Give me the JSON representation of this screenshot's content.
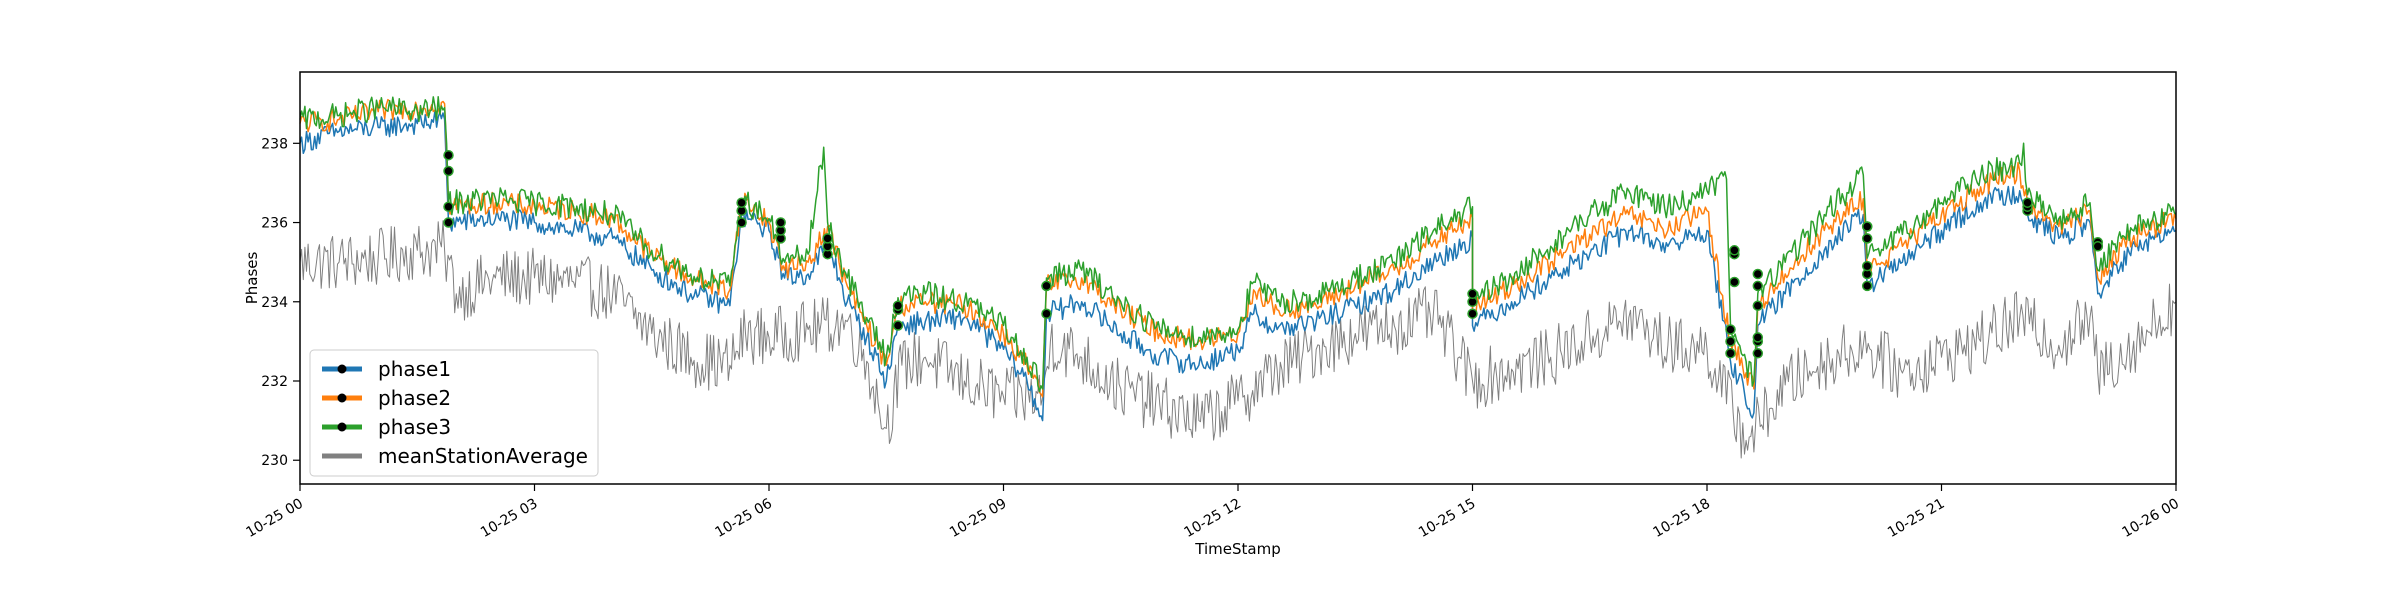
{
  "chart_data": {
    "type": "line",
    "xlabel": "TimeStamp",
    "ylabel": "Phases",
    "x_range": [
      "2023-10-25 00:00",
      "2023-10-26 00:00"
    ],
    "xtick_labels": [
      "10-25 00",
      "10-25 03",
      "10-25 06",
      "10-25 09",
      "10-25 12",
      "10-25 15",
      "10-25 18",
      "10-25 21",
      "10-26 00"
    ],
    "xtick_hours": [
      0,
      3,
      6,
      9,
      12,
      15,
      18,
      21,
      24
    ],
    "ylim": [
      229.4,
      239.8
    ],
    "yticks": [
      230,
      232,
      234,
      236,
      238
    ],
    "grid": false,
    "legend_position": "lower-left",
    "series": [
      {
        "name": "phase1",
        "color": "#1f77b4",
        "points": [
          [
            0.0,
            238.0
          ],
          [
            0.5,
            238.3
          ],
          [
            1.0,
            238.4
          ],
          [
            1.5,
            238.5
          ],
          [
            1.85,
            238.6
          ],
          [
            1.9,
            236.0
          ],
          [
            2.5,
            236.1
          ],
          [
            3.0,
            236.0
          ],
          [
            3.5,
            235.8
          ],
          [
            4.0,
            235.6
          ],
          [
            4.5,
            234.8
          ],
          [
            5.0,
            234.2
          ],
          [
            5.5,
            233.9
          ],
          [
            5.65,
            236.2
          ],
          [
            6.0,
            235.8
          ],
          [
            6.2,
            234.6
          ],
          [
            6.5,
            234.7
          ],
          [
            6.75,
            235.5
          ],
          [
            7.0,
            234.0
          ],
          [
            7.25,
            233.1
          ],
          [
            7.5,
            232.0
          ],
          [
            7.65,
            233.4
          ],
          [
            8.0,
            233.5
          ],
          [
            8.5,
            233.6
          ],
          [
            9.0,
            232.8
          ],
          [
            9.3,
            232.0
          ],
          [
            9.5,
            231.0
          ],
          [
            9.55,
            233.7
          ],
          [
            10.0,
            234.0
          ],
          [
            10.5,
            233.2
          ],
          [
            11.0,
            232.6
          ],
          [
            11.5,
            232.4
          ],
          [
            12.0,
            232.8
          ],
          [
            12.2,
            233.7
          ],
          [
            12.5,
            233.3
          ],
          [
            13.0,
            233.5
          ],
          [
            13.5,
            233.9
          ],
          [
            14.0,
            234.3
          ],
          [
            14.5,
            235.0
          ],
          [
            15.0,
            235.6
          ],
          [
            15.0,
            233.4
          ],
          [
            15.5,
            234.0
          ],
          [
            16.0,
            234.6
          ],
          [
            16.5,
            235.2
          ],
          [
            17.0,
            235.8
          ],
          [
            17.5,
            235.4
          ],
          [
            18.0,
            235.8
          ],
          [
            18.3,
            232.5
          ],
          [
            18.6,
            231.2
          ],
          [
            18.65,
            233.4
          ],
          [
            19.0,
            234.2
          ],
          [
            19.5,
            235.3
          ],
          [
            20.0,
            236.2
          ],
          [
            20.05,
            234.4
          ],
          [
            20.5,
            235.0
          ],
          [
            21.0,
            235.8
          ],
          [
            21.5,
            236.5
          ],
          [
            22.0,
            236.8
          ],
          [
            22.1,
            236.2
          ],
          [
            22.5,
            235.6
          ],
          [
            22.9,
            236.0
          ],
          [
            23.0,
            234.2
          ],
          [
            23.3,
            235.0
          ],
          [
            23.6,
            235.5
          ],
          [
            24.0,
            235.8
          ]
        ]
      },
      {
        "name": "phase2",
        "color": "#ff7f0e",
        "points": [
          [
            0.0,
            238.5
          ],
          [
            0.5,
            238.6
          ],
          [
            1.0,
            238.8
          ],
          [
            1.5,
            238.9
          ],
          [
            1.85,
            239.0
          ],
          [
            1.9,
            236.4
          ],
          [
            2.5,
            236.5
          ],
          [
            3.0,
            236.4
          ],
          [
            3.5,
            236.3
          ],
          [
            4.0,
            236.1
          ],
          [
            4.5,
            235.2
          ],
          [
            5.0,
            234.6
          ],
          [
            5.5,
            234.3
          ],
          [
            5.65,
            236.6
          ],
          [
            6.0,
            236.0
          ],
          [
            6.2,
            234.8
          ],
          [
            6.5,
            235.0
          ],
          [
            6.75,
            235.9
          ],
          [
            7.0,
            234.4
          ],
          [
            7.25,
            233.4
          ],
          [
            7.5,
            232.4
          ],
          [
            7.65,
            233.9
          ],
          [
            8.0,
            234.0
          ],
          [
            8.5,
            233.9
          ],
          [
            9.0,
            233.2
          ],
          [
            9.3,
            232.4
          ],
          [
            9.5,
            231.6
          ],
          [
            9.55,
            234.4
          ],
          [
            10.0,
            234.6
          ],
          [
            10.5,
            233.8
          ],
          [
            11.0,
            233.2
          ],
          [
            11.5,
            233.0
          ],
          [
            12.0,
            233.2
          ],
          [
            12.2,
            234.3
          ],
          [
            12.5,
            233.8
          ],
          [
            13.0,
            233.9
          ],
          [
            13.5,
            234.4
          ],
          [
            14.0,
            234.8
          ],
          [
            14.5,
            235.5
          ],
          [
            15.0,
            236.1
          ],
          [
            15.0,
            233.8
          ],
          [
            15.5,
            234.4
          ],
          [
            16.0,
            235.0
          ],
          [
            16.5,
            235.7
          ],
          [
            17.0,
            236.2
          ],
          [
            17.5,
            235.8
          ],
          [
            18.0,
            236.3
          ],
          [
            18.3,
            233.0
          ],
          [
            18.6,
            231.8
          ],
          [
            18.65,
            233.9
          ],
          [
            19.0,
            234.7
          ],
          [
            19.5,
            235.8
          ],
          [
            20.0,
            236.6
          ],
          [
            20.05,
            234.8
          ],
          [
            20.5,
            235.4
          ],
          [
            21.0,
            236.2
          ],
          [
            21.5,
            236.9
          ],
          [
            22.0,
            237.3
          ],
          [
            22.1,
            236.5
          ],
          [
            22.5,
            235.9
          ],
          [
            22.9,
            236.3
          ],
          [
            23.0,
            234.6
          ],
          [
            23.3,
            235.4
          ],
          [
            23.6,
            235.8
          ],
          [
            24.0,
            236.1
          ]
        ]
      },
      {
        "name": "phase3",
        "color": "#2ca02c",
        "points": [
          [
            0.0,
            238.6
          ],
          [
            0.5,
            238.7
          ],
          [
            1.0,
            238.9
          ],
          [
            1.5,
            238.8
          ],
          [
            1.85,
            238.9
          ],
          [
            1.9,
            236.5
          ],
          [
            2.5,
            236.6
          ],
          [
            3.0,
            236.5
          ],
          [
            3.5,
            236.4
          ],
          [
            4.0,
            236.2
          ],
          [
            4.5,
            235.3
          ],
          [
            5.0,
            234.7
          ],
          [
            5.5,
            234.4
          ],
          [
            5.65,
            236.6
          ],
          [
            6.0,
            236.1
          ],
          [
            6.2,
            235.0
          ],
          [
            6.5,
            235.2
          ],
          [
            6.7,
            237.9
          ],
          [
            6.75,
            236.0
          ],
          [
            7.0,
            234.6
          ],
          [
            7.25,
            233.6
          ],
          [
            7.5,
            232.6
          ],
          [
            7.65,
            234.1
          ],
          [
            8.0,
            234.2
          ],
          [
            8.5,
            234.0
          ],
          [
            9.0,
            233.4
          ],
          [
            9.3,
            232.6
          ],
          [
            9.5,
            231.8
          ],
          [
            9.55,
            234.6
          ],
          [
            10.0,
            234.8
          ],
          [
            10.5,
            234.0
          ],
          [
            11.0,
            233.3
          ],
          [
            11.5,
            233.1
          ],
          [
            12.0,
            233.3
          ],
          [
            12.2,
            234.5
          ],
          [
            12.5,
            234.0
          ],
          [
            13.0,
            234.1
          ],
          [
            13.5,
            234.6
          ],
          [
            14.0,
            235.0
          ],
          [
            14.5,
            235.8
          ],
          [
            15.0,
            236.4
          ],
          [
            15.0,
            234.0
          ],
          [
            15.5,
            234.6
          ],
          [
            16.0,
            235.4
          ],
          [
            16.5,
            236.2
          ],
          [
            17.0,
            236.8
          ],
          [
            17.5,
            236.4
          ],
          [
            18.0,
            236.8
          ],
          [
            18.25,
            237.1
          ],
          [
            18.3,
            233.4
          ],
          [
            18.6,
            232.0
          ],
          [
            18.65,
            234.2
          ],
          [
            19.0,
            235.0
          ],
          [
            19.5,
            236.2
          ],
          [
            20.0,
            237.2
          ],
          [
            20.05,
            235.1
          ],
          [
            20.5,
            235.7
          ],
          [
            21.0,
            236.5
          ],
          [
            21.5,
            237.2
          ],
          [
            22.0,
            237.5
          ],
          [
            22.05,
            238.0
          ],
          [
            22.1,
            236.7
          ],
          [
            22.5,
            236.1
          ],
          [
            22.9,
            236.5
          ],
          [
            23.0,
            234.8
          ],
          [
            23.3,
            235.6
          ],
          [
            23.6,
            236.0
          ],
          [
            24.0,
            236.2
          ]
        ]
      },
      {
        "name": "meanStationAverage",
        "color": "#808080",
        "points": [
          [
            0.0,
            235.0
          ],
          [
            0.5,
            235.0
          ],
          [
            1.0,
            235.1
          ],
          [
            1.5,
            235.3
          ],
          [
            1.85,
            235.3
          ],
          [
            2.0,
            234.2
          ],
          [
            2.5,
            234.6
          ],
          [
            3.0,
            234.6
          ],
          [
            3.5,
            234.5
          ],
          [
            4.0,
            234.2
          ],
          [
            4.5,
            233.2
          ],
          [
            5.0,
            232.6
          ],
          [
            5.5,
            232.4
          ],
          [
            5.7,
            233.2
          ],
          [
            6.0,
            233.1
          ],
          [
            6.5,
            233.3
          ],
          [
            7.0,
            233.5
          ],
          [
            7.25,
            232.5
          ],
          [
            7.5,
            230.8
          ],
          [
            7.7,
            232.4
          ],
          [
            8.0,
            232.6
          ],
          [
            8.5,
            232.0
          ],
          [
            9.0,
            231.6
          ],
          [
            9.5,
            231.6
          ],
          [
            9.6,
            233.0
          ],
          [
            10.0,
            232.6
          ],
          [
            10.5,
            231.8
          ],
          [
            11.0,
            231.4
          ],
          [
            11.5,
            231.0
          ],
          [
            12.0,
            231.5
          ],
          [
            12.5,
            232.3
          ],
          [
            13.0,
            232.8
          ],
          [
            13.5,
            233.2
          ],
          [
            14.0,
            233.4
          ],
          [
            14.5,
            233.7
          ],
          [
            15.0,
            232.0
          ],
          [
            15.5,
            232.3
          ],
          [
            16.0,
            232.6
          ],
          [
            16.5,
            233.1
          ],
          [
            17.0,
            233.6
          ],
          [
            17.5,
            232.9
          ],
          [
            18.0,
            232.8
          ],
          [
            18.5,
            230.5
          ],
          [
            18.8,
            231.3
          ],
          [
            19.0,
            231.9
          ],
          [
            19.5,
            232.5
          ],
          [
            20.0,
            232.9
          ],
          [
            20.5,
            232.2
          ],
          [
            21.0,
            232.6
          ],
          [
            21.5,
            233.0
          ],
          [
            22.0,
            233.6
          ],
          [
            22.5,
            232.9
          ],
          [
            22.9,
            233.6
          ],
          [
            23.0,
            232.2
          ],
          [
            23.5,
            233.0
          ],
          [
            24.0,
            234.0
          ]
        ]
      }
    ],
    "markers": [
      {
        "series": "phase1",
        "points": [
          [
            1.9,
            236.0
          ],
          [
            5.65,
            236.0
          ],
          [
            6.15,
            235.6
          ],
          [
            6.75,
            235.2
          ],
          [
            7.65,
            233.4
          ],
          [
            9.55,
            233.7
          ],
          [
            15.0,
            233.7
          ],
          [
            18.3,
            232.7
          ],
          [
            18.35,
            234.5
          ],
          [
            18.65,
            232.7
          ],
          [
            18.65,
            233.9
          ],
          [
            20.05,
            234.4
          ],
          [
            20.05,
            235.6
          ],
          [
            22.1,
            236.3
          ],
          [
            23.0,
            235.4
          ]
        ]
      },
      {
        "series": "phase2",
        "points": [
          [
            1.9,
            237.3
          ],
          [
            5.65,
            236.3
          ],
          [
            6.15,
            235.8
          ],
          [
            6.75,
            235.4
          ],
          [
            7.65,
            233.8
          ],
          [
            9.55,
            234.4
          ],
          [
            15.0,
            234.0
          ],
          [
            18.3,
            233.0
          ],
          [
            18.35,
            235.2
          ],
          [
            18.65,
            233.0
          ],
          [
            18.65,
            234.4
          ],
          [
            20.05,
            234.7
          ],
          [
            20.05,
            235.9
          ],
          [
            22.1,
            236.4
          ],
          [
            23.0,
            235.5
          ]
        ]
      },
      {
        "series": "phase3",
        "points": [
          [
            1.9,
            237.7
          ],
          [
            1.9,
            236.4
          ],
          [
            5.65,
            236.5
          ],
          [
            6.15,
            236.0
          ],
          [
            6.75,
            235.6
          ],
          [
            7.65,
            233.9
          ],
          [
            9.55,
            234.4
          ],
          [
            15.0,
            234.2
          ],
          [
            18.3,
            233.3
          ],
          [
            18.35,
            235.3
          ],
          [
            18.65,
            233.1
          ],
          [
            18.65,
            234.7
          ],
          [
            20.05,
            234.9
          ],
          [
            20.05,
            235.9
          ],
          [
            22.1,
            236.5
          ],
          [
            23.0,
            235.4
          ]
        ]
      }
    ]
  }
}
